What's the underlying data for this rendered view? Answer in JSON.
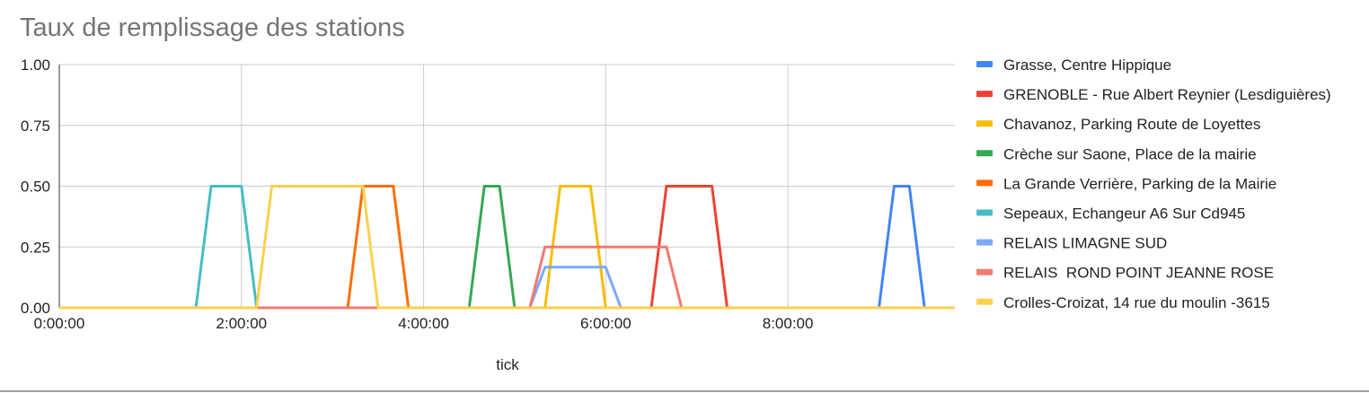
{
  "chart_data": {
    "type": "line",
    "title": "Taux de remplissage des stations",
    "xlabel": "tick",
    "ylabel": "",
    "ylim": [
      0,
      1
    ],
    "xlim_minutes": [
      0,
      590
    ],
    "y_ticks": [
      "0.00",
      "0.25",
      "0.50",
      "0.75",
      "1.00"
    ],
    "x_ticks": [
      "0:00:00",
      "2:00:00",
      "4:00:00",
      "6:00:00",
      "8:00:00"
    ],
    "grid": true,
    "legend_position": "right",
    "series": [
      {
        "name": "Grasse, Centre Hippique",
        "color": "#4285f4",
        "points": [
          [
            0,
            0
          ],
          [
            540,
            0
          ],
          [
            550,
            0.5
          ],
          [
            560,
            0.5
          ],
          [
            570,
            0
          ],
          [
            590,
            0
          ]
        ]
      },
      {
        "name": "GRENOBLE - Rue Albert Reynier (Lesdiguières)",
        "color": "#ea4335",
        "points": [
          [
            0,
            0
          ],
          [
            390,
            0
          ],
          [
            400,
            0.5
          ],
          [
            430,
            0.5
          ],
          [
            440,
            0
          ],
          [
            590,
            0
          ]
        ]
      },
      {
        "name": "Chavanoz, Parking Route de Loyettes",
        "color": "#fbbc04",
        "points": [
          [
            0,
            0
          ],
          [
            320,
            0
          ],
          [
            330,
            0.5
          ],
          [
            350,
            0.5
          ],
          [
            360,
            0
          ],
          [
            590,
            0
          ]
        ]
      },
      {
        "name": "Crèche sur Saone, Place de la mairie",
        "color": "#34a853",
        "points": [
          [
            0,
            0
          ],
          [
            270,
            0
          ],
          [
            280,
            0.5
          ],
          [
            290,
            0.5
          ],
          [
            300,
            0
          ],
          [
            590,
            0
          ]
        ]
      },
      {
        "name": "La Grande Verrière, Parking de la Mairie",
        "color": "#ff6d01",
        "points": [
          [
            0,
            0
          ],
          [
            190,
            0
          ],
          [
            200,
            0.5
          ],
          [
            220,
            0.5
          ],
          [
            230,
            0
          ],
          [
            590,
            0
          ]
        ]
      },
      {
        "name": "Sepeaux, Echangeur A6 Sur Cd945",
        "color": "#46bdc6",
        "points": [
          [
            0,
            0
          ],
          [
            90,
            0
          ],
          [
            100,
            0.5
          ],
          [
            120,
            0.5
          ],
          [
            130,
            0
          ],
          [
            590,
            0
          ]
        ]
      },
      {
        "name": "RELAIS LIMAGNE SUD",
        "color": "#7baaf7",
        "points": [
          [
            0,
            0
          ],
          [
            310,
            0
          ],
          [
            320,
            0.1667
          ],
          [
            360,
            0.1667
          ],
          [
            370,
            0
          ],
          [
            590,
            0
          ]
        ]
      },
      {
        "name": "RELAIS  ROND POINT JEANNE ROSE",
        "color": "#f07b72",
        "points": [
          [
            0,
            0
          ],
          [
            310,
            0
          ],
          [
            320,
            0.25
          ],
          [
            400,
            0.25
          ],
          [
            410,
            0
          ],
          [
            590,
            0
          ]
        ]
      },
      {
        "name": "Crolles-Croizat, 14 rue du moulin -3615",
        "color": "#fcd04f",
        "points": [
          [
            0,
            0
          ],
          [
            130,
            0
          ],
          [
            140,
            0.5
          ],
          [
            200,
            0.5
          ],
          [
            210,
            0
          ],
          [
            590,
            0
          ]
        ]
      }
    ]
  }
}
